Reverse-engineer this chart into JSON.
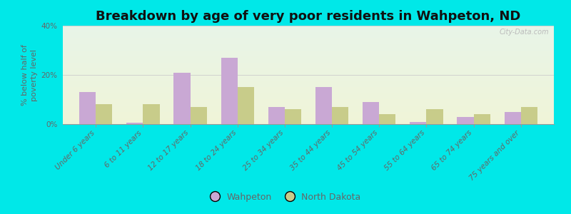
{
  "title": "Breakdown by age of very poor residents in Wahpeton, ND",
  "ylabel": "% below half of\npoverty level",
  "categories": [
    "Under 6 years",
    "6 to 11 years",
    "12 to 17 years",
    "18 to 24 years",
    "25 to 34 years",
    "35 to 44 years",
    "45 to 54 years",
    "55 to 64 years",
    "65 to 74 years",
    "75 years and over"
  ],
  "wahpeton": [
    13.0,
    0.5,
    21.0,
    27.0,
    7.0,
    15.0,
    9.0,
    1.0,
    3.0,
    5.0
  ],
  "north_dakota": [
    8.0,
    8.0,
    7.0,
    15.0,
    6.0,
    7.0,
    4.0,
    6.0,
    4.0,
    7.0
  ],
  "wahpeton_color": "#c9a8d4",
  "nd_color": "#c8cc8a",
  "bg_bottom_color": "#f0f5d8",
  "bg_top_color": "#e8f4e8",
  "outer_bg": "#00e8e8",
  "ylim": [
    0,
    40
  ],
  "yticks": [
    0,
    20,
    40
  ],
  "ytick_labels": [
    "0%",
    "20%",
    "40%"
  ],
  "bar_width": 0.35,
  "title_fontsize": 13,
  "axis_fontsize": 8,
  "tick_fontsize": 7.5,
  "legend_wahpeton": "Wahpeton",
  "legend_nd": "North Dakota",
  "watermark": "City-Data.com",
  "grid_color": "#cccccc",
  "text_color": "#666666"
}
